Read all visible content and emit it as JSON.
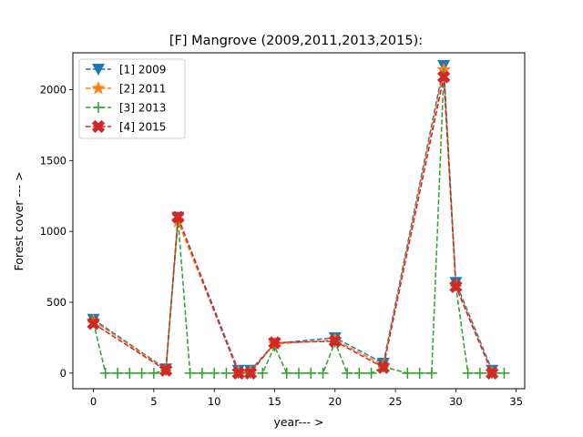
{
  "chart_data": {
    "type": "line",
    "title": "[F] Mangrove (2009,2011,2013,2015):",
    "xlabel": "year--- >",
    "ylabel": "Forest cover --- >",
    "xlim": [
      -1.7,
      35.7
    ],
    "ylim": [
      -110,
      2260
    ],
    "xticks": [
      0,
      5,
      10,
      15,
      20,
      25,
      30,
      35
    ],
    "yticks": [
      0,
      500,
      1000,
      1500,
      2000
    ],
    "grid": false,
    "legend_position": "upper left",
    "series": [
      {
        "name": "[1] 2009",
        "color": "#1f77b4",
        "marker": "triangle-down",
        "points": [
          [
            0,
            380
          ],
          [
            6,
            30
          ],
          [
            7,
            1100
          ],
          [
            12,
            20
          ],
          [
            13,
            20
          ],
          [
            15,
            210
          ],
          [
            20,
            250
          ],
          [
            24,
            70
          ],
          [
            29,
            2170
          ],
          [
            30,
            640
          ],
          [
            33,
            20
          ]
        ]
      },
      {
        "name": "[2] 2011",
        "color": "#ff7f0e",
        "marker": "star",
        "points": [
          [
            0,
            370
          ],
          [
            6,
            25
          ],
          [
            7,
            1070
          ],
          [
            12,
            10
          ],
          [
            13,
            10
          ],
          [
            15,
            205
          ],
          [
            20,
            235
          ],
          [
            24,
            55
          ],
          [
            29,
            2140
          ],
          [
            30,
            625
          ],
          [
            33,
            5
          ]
        ]
      },
      {
        "name": "[3] 2013",
        "color": "#2ca02c",
        "marker": "plus",
        "points": [
          [
            0,
            360
          ],
          [
            1,
            0
          ],
          [
            2,
            0
          ],
          [
            3,
            0
          ],
          [
            4,
            0
          ],
          [
            5,
            0
          ],
          [
            6,
            20
          ],
          [
            7,
            1090
          ],
          [
            8,
            0
          ],
          [
            9,
            0
          ],
          [
            10,
            0
          ],
          [
            11,
            0
          ],
          [
            12,
            0
          ],
          [
            13,
            0
          ],
          [
            14,
            0
          ],
          [
            15,
            190
          ],
          [
            16,
            0
          ],
          [
            17,
            0
          ],
          [
            18,
            0
          ],
          [
            19,
            0
          ],
          [
            20,
            220
          ],
          [
            21,
            0
          ],
          [
            22,
            0
          ],
          [
            23,
            0
          ],
          [
            24,
            45
          ],
          [
            26,
            0
          ],
          [
            27,
            0
          ],
          [
            28,
            0
          ],
          [
            29,
            2110
          ],
          [
            30,
            615
          ],
          [
            31,
            0
          ],
          [
            32,
            0
          ],
          [
            33,
            0
          ],
          [
            34,
            0
          ]
        ]
      },
      {
        "name": "[4] 2015",
        "color": "#d62728",
        "marker": "x-filled",
        "points": [
          [
            0,
            350
          ],
          [
            6,
            20
          ],
          [
            7,
            1100
          ],
          [
            12,
            0
          ],
          [
            13,
            0
          ],
          [
            15,
            215
          ],
          [
            20,
            225
          ],
          [
            24,
            40
          ],
          [
            29,
            2090
          ],
          [
            30,
            610
          ],
          [
            33,
            0
          ]
        ]
      }
    ]
  }
}
